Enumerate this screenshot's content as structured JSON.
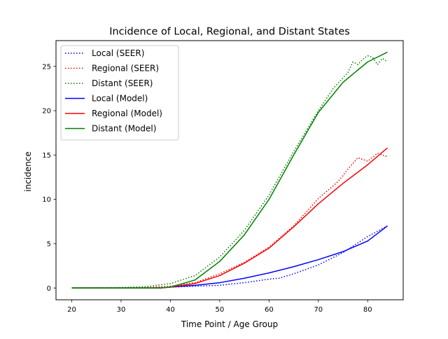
{
  "chart_data": {
    "type": "line",
    "title": "Incidence of Local, Regional, and Distant States",
    "xlabel": "Time Point / Age Group",
    "ylabel": "incidence",
    "xlim": [
      16.8,
      87.2
    ],
    "ylim": [
      -1.33,
      27.9
    ],
    "xticks": [
      20,
      30,
      40,
      50,
      60,
      70,
      80
    ],
    "yticks": [
      0,
      5,
      10,
      15,
      20,
      25
    ],
    "grid": false,
    "legend_position": "upper left",
    "series": [
      {
        "name": "Local (SEER)",
        "color": "#0000ff",
        "style": "dotted",
        "x": [
          20,
          30,
          40,
          45,
          50,
          55,
          60,
          62,
          65,
          70,
          75,
          80,
          84
        ],
        "y": [
          0,
          0,
          0.1,
          0.2,
          0.3,
          0.6,
          1.0,
          1.1,
          1.6,
          2.6,
          4.0,
          5.8,
          7.0
        ]
      },
      {
        "name": "Regional (SEER)",
        "color": "#ff0000",
        "style": "dotted",
        "x": [
          20,
          30,
          35,
          40,
          45,
          50,
          55,
          60,
          65,
          70,
          74,
          76,
          78,
          80,
          82,
          84
        ],
        "y": [
          0,
          0,
          0.05,
          0.2,
          0.6,
          1.6,
          2.9,
          4.6,
          7.0,
          10.1,
          12.0,
          13.4,
          14.7,
          14.3,
          15.2,
          14.8
        ]
      },
      {
        "name": "Distant (SEER)",
        "color": "#008000",
        "style": "dotted",
        "x": [
          20,
          30,
          35,
          40,
          45,
          50,
          55,
          60,
          65,
          70,
          73,
          76,
          77,
          78,
          79,
          80,
          81,
          82,
          83,
          84
        ],
        "y": [
          0,
          0.05,
          0.15,
          0.5,
          1.4,
          3.5,
          6.5,
          10.5,
          15.4,
          20.0,
          22.5,
          24.3,
          25.5,
          25.2,
          25.8,
          26.2,
          26.0,
          25.2,
          25.9,
          25.5
        ]
      },
      {
        "name": "Local (Model)",
        "color": "#0000ff",
        "style": "solid",
        "x": [
          20,
          30,
          38,
          40,
          45,
          50,
          55,
          60,
          65,
          70,
          75,
          80,
          84
        ],
        "y": [
          0,
          0,
          0,
          0.1,
          0.3,
          0.6,
          1.1,
          1.7,
          2.4,
          3.2,
          4.1,
          5.3,
          7.0
        ]
      },
      {
        "name": "Regional (Model)",
        "color": "#ff0000",
        "style": "solid",
        "x": [
          20,
          30,
          38,
          40,
          45,
          50,
          55,
          60,
          65,
          70,
          75,
          80,
          84
        ],
        "y": [
          0,
          0,
          0,
          0.1,
          0.5,
          1.4,
          2.8,
          4.5,
          6.9,
          9.5,
          11.8,
          13.9,
          15.8
        ]
      },
      {
        "name": "Distant (Model)",
        "color": "#008000",
        "style": "solid",
        "x": [
          20,
          30,
          38,
          40,
          45,
          50,
          55,
          60,
          65,
          70,
          75,
          80,
          84
        ],
        "y": [
          0,
          0,
          0,
          0.1,
          0.9,
          3.0,
          6.0,
          10.0,
          15.0,
          19.8,
          23.2,
          25.5,
          26.6
        ]
      }
    ]
  }
}
